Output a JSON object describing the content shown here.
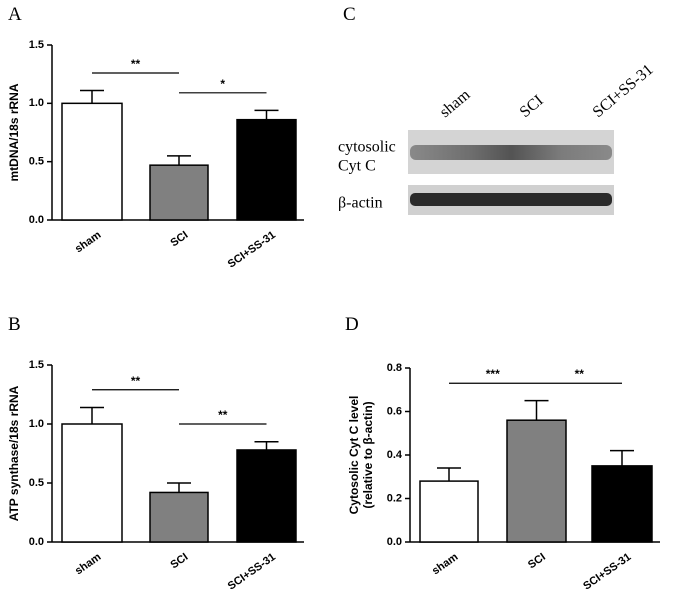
{
  "chart_data": [
    {
      "type": "bar",
      "panel": "A",
      "ylabel_lines": [
        "mtDNA/18s rRNA"
      ],
      "categories": [
        "sham",
        "SCI",
        "SCI+SS-31"
      ],
      "values": [
        1.0,
        0.47,
        0.86
      ],
      "errors": [
        0.11,
        0.08,
        0.08
      ],
      "colors": [
        "#ffffff",
        "#808080",
        "#000000"
      ],
      "ylim": [
        0,
        1.5
      ],
      "yticks": [
        {
          "value": 0,
          "label": "0.0"
        },
        {
          "value": 0.5,
          "label": "0.5"
        },
        {
          "value": 1,
          "label": "1.0"
        },
        {
          "value": 1.5,
          "label": "1.5"
        }
      ],
      "comparisons": [
        {
          "pair": [
            "sham",
            "SCI"
          ],
          "label": "**"
        },
        {
          "pair": [
            "SCI",
            "SCI+SS-31"
          ],
          "label": "*"
        }
      ]
    },
    {
      "type": "bar",
      "panel": "B",
      "ylabel_lines": [
        "ATP synthase/18s rRNA"
      ],
      "categories": [
        "sham",
        "SCI",
        "SCI+SS-31"
      ],
      "values": [
        1.0,
        0.42,
        0.78
      ],
      "errors": [
        0.14,
        0.08,
        0.07
      ],
      "colors": [
        "#ffffff",
        "#808080",
        "#000000"
      ],
      "ylim": [
        0,
        1.5
      ],
      "yticks": [
        {
          "value": 0,
          "label": "0.0"
        },
        {
          "value": 0.5,
          "label": "0.5"
        },
        {
          "value": 1,
          "label": "1.0"
        },
        {
          "value": 1.5,
          "label": "1.5"
        }
      ],
      "comparisons": [
        {
          "pair": [
            "sham",
            "SCI"
          ],
          "label": "**"
        },
        {
          "pair": [
            "SCI",
            "SCI+SS-31"
          ],
          "label": "**"
        }
      ]
    },
    {
      "type": "bar",
      "panel": "D",
      "ylabel_lines": [
        "Cytosolic Cyt C level",
        "(relative to β-actin)"
      ],
      "categories": [
        "sham",
        "SCI",
        "SCI+SS-31"
      ],
      "values": [
        0.28,
        0.56,
        0.35
      ],
      "errors": [
        0.06,
        0.09,
        0.07
      ],
      "colors": [
        "#ffffff",
        "#808080",
        "#000000"
      ],
      "ylim": [
        0,
        0.8
      ],
      "yticks": [
        {
          "value": 0,
          "label": "0.0"
        },
        {
          "value": 0.2,
          "label": "0.2"
        },
        {
          "value": 0.4,
          "label": "0.4"
        },
        {
          "value": 0.6,
          "label": "0.6"
        },
        {
          "value": 0.8,
          "label": "0.8"
        }
      ],
      "comparisons": [
        {
          "pair": [
            "sham",
            "SCI"
          ],
          "label": "***"
        },
        {
          "pair": [
            "SCI",
            "SCI+SS-31"
          ],
          "label": "**"
        }
      ]
    }
  ],
  "blot": {
    "panel": "C",
    "lanes": [
      "sham",
      "SCI",
      "SCI+SS-31"
    ],
    "rows": [
      [
        "cytosolic",
        "Cyt C"
      ],
      [
        "β-actin"
      ]
    ]
  }
}
